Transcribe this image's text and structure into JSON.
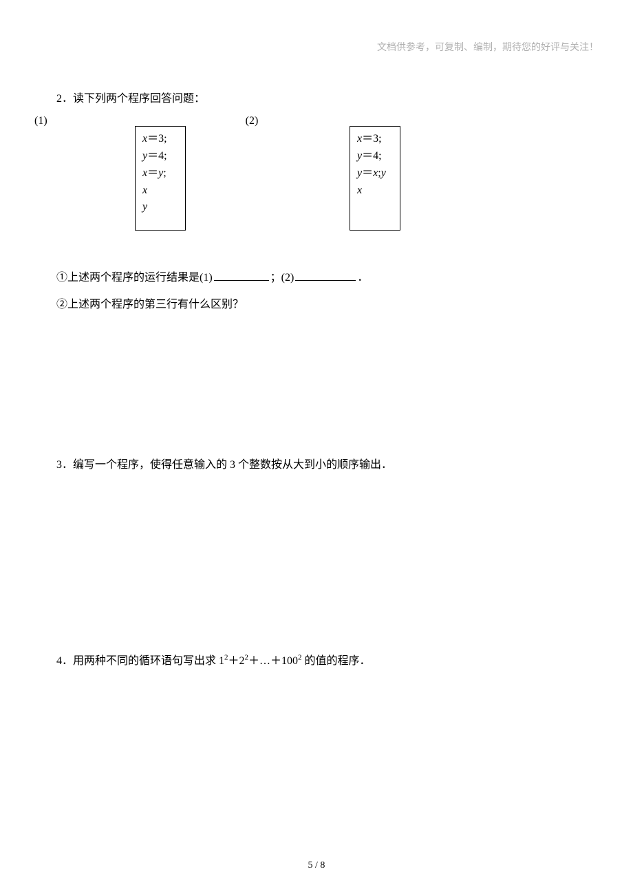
{
  "header": {
    "note": "文档供参考，可复制、编制，期待您的好评与关注！"
  },
  "q2": {
    "title": "2．读下列两个程序回答问题："
  },
  "labels": {
    "one": "(1)",
    "two": "(2)"
  },
  "code1": {
    "l1_pre": "x",
    "l1_post": "＝3;",
    "l2_pre": "y",
    "l2_post": "＝4;",
    "l3_pre": "x",
    "l3_mid": "＝",
    "l3_var2": "y",
    "l3_post": ";",
    "l4": "x",
    "l5": "y"
  },
  "code2": {
    "l1_pre": "x",
    "l1_post": "＝3;",
    "l2_pre": "y",
    "l2_post": "＝4;",
    "l3_pre": "y",
    "l3_mid": "＝",
    "l3_var2": "x",
    "l3_sep": ";",
    "l3_var3": "y",
    "l4": "x"
  },
  "subq": {
    "line1_a": "①上述两个程序的运行结果是(1)",
    "line1_b": "；(2)",
    "line1_c": "．",
    "line2": "②上述两个程序的第三行有什么区别？"
  },
  "q3": {
    "text": "3．编写一个程序，使得任意输入的 3 个整数按从大到小的顺序输出．"
  },
  "q4": {
    "pre": "4．用两种不同的循环语句写出求 1",
    "sup1": "2",
    "mid1": "＋2",
    "sup2": "2",
    "mid2": "＋…＋100",
    "sup3": "2",
    "post": " 的值的程序．"
  },
  "footer": {
    "text": "5 / 8"
  }
}
